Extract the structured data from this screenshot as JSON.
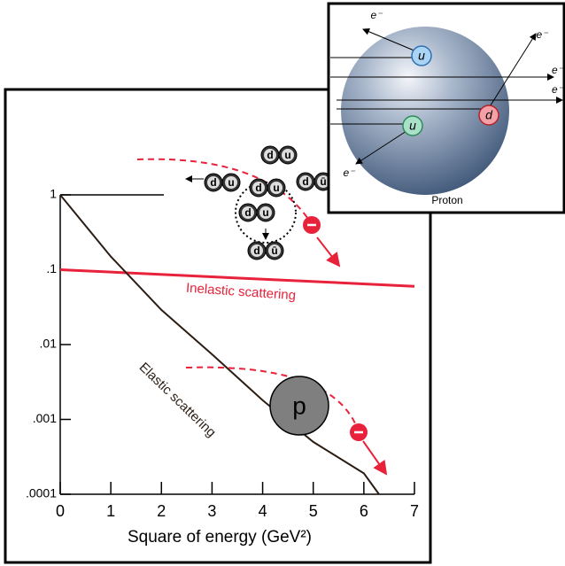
{
  "chart_data": {
    "type": "line",
    "x_label": "Square of energy (GeV²)",
    "xlim": [
      0,
      7
    ],
    "xticks": [
      0,
      1,
      2,
      3,
      4,
      5,
      6,
      7
    ],
    "ylim": [
      0.0001,
      1
    ],
    "log_y": true,
    "yticks": [
      1,
      {
        "value": 0.1,
        "label": ".1"
      },
      {
        "value": 0.01,
        "label": ".01"
      },
      {
        "value": 0.001,
        "label": ".001"
      },
      {
        "value": 0.0001,
        "label": ".0001"
      }
    ],
    "series": [
      {
        "name": "Inelastic scattering",
        "color": "#e8223a",
        "x": [
          0,
          7
        ],
        "values": [
          0.1,
          0.06
        ]
      },
      {
        "name": "Elastic scattering",
        "color": "#2b1d14",
        "x": [
          0,
          1,
          2,
          3,
          4,
          5,
          6,
          6.3
        ],
        "values": [
          1,
          0.15,
          0.029,
          0.0074,
          0.0018,
          0.0005,
          0.00019,
          0.0001
        ]
      }
    ],
    "proton_label": "p",
    "quark_pairs": [
      [
        "d",
        "u"
      ],
      [
        "d",
        "u"
      ],
      [
        "d",
        "u"
      ],
      [
        "d",
        "ū"
      ],
      [
        "d",
        "u"
      ],
      [
        "d",
        "ū"
      ]
    ]
  },
  "inset": {
    "title": "Proton",
    "quarks": [
      "u",
      "d",
      "u"
    ],
    "electrons": [
      "e⁻",
      "e⁻",
      "e⁻",
      "e⁻",
      "e⁻"
    ]
  }
}
